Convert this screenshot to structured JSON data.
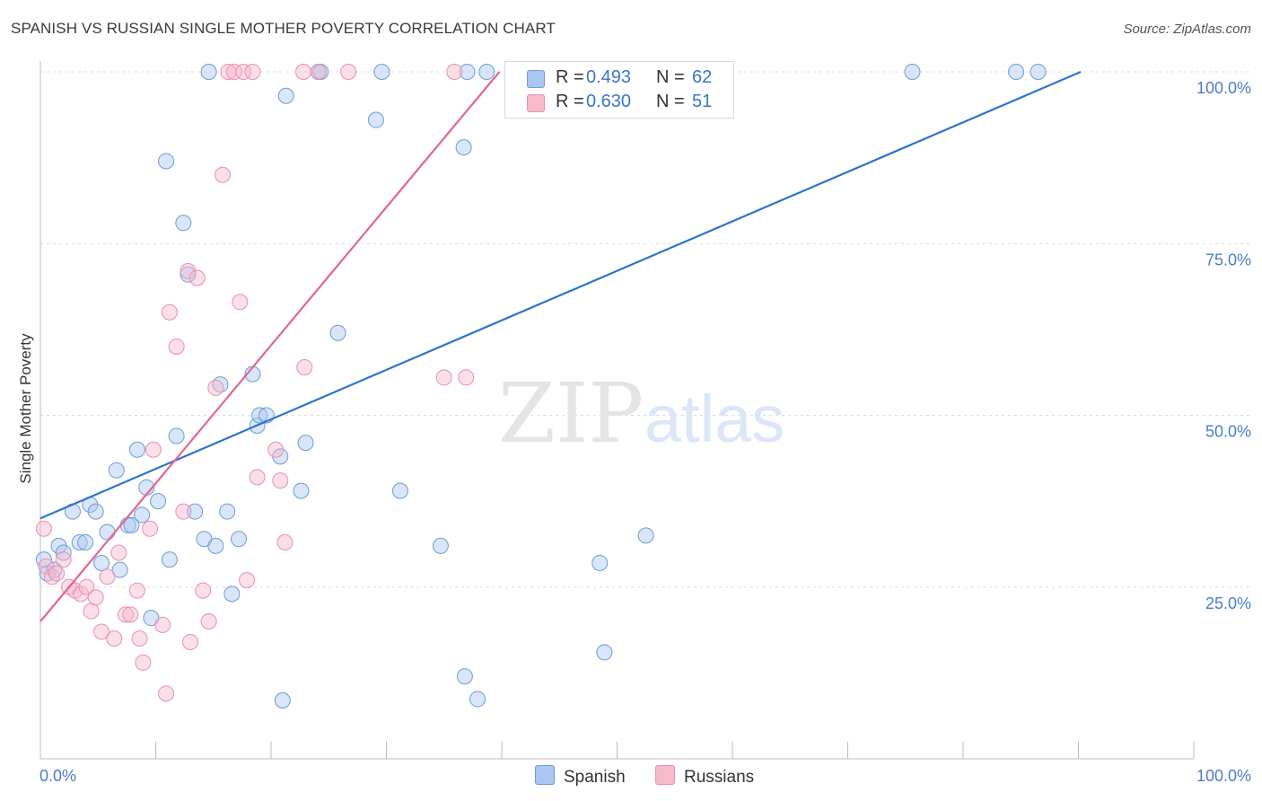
{
  "header": {
    "title": "SPANISH VS RUSSIAN SINGLE MOTHER POVERTY CORRELATION CHART",
    "source": "Source: ZipAtlas.com"
  },
  "watermark": {
    "zip": "ZIP",
    "atlas": "atlas"
  },
  "legend": {
    "rows": [
      {
        "r_label": "R =",
        "r_value": "0.493",
        "n_label": "N =",
        "n_value": "62",
        "color": "#a9c7f0"
      },
      {
        "r_label": "R =",
        "r_value": "0.630",
        "n_label": "N =",
        "n_value": "51",
        "color": "#f7b9cc"
      }
    ]
  },
  "bottom_legend": {
    "spanish": "Spanish",
    "russians": "Russians"
  },
  "colors": {
    "spanish_fill": "#a9c7f0",
    "spanish_stroke": "#6e9bd6",
    "spanish_line": "#2f73cc",
    "russian_fill": "#f7b9cc",
    "russian_stroke": "#e891ac",
    "russian_line": "#e0688f",
    "tick_text": "#4a7cc9",
    "grid": "#dcdcdc"
  },
  "chart_data": {
    "type": "scatter",
    "title": "SPANISH VS RUSSIAN SINGLE MOTHER POVERTY CORRELATION CHART",
    "xlabel": "",
    "ylabel": "Single Mother Poverty",
    "xlim": [
      0,
      100
    ],
    "ylim": [
      0,
      102
    ],
    "x_tick_labels": [
      "0.0%",
      "100.0%"
    ],
    "y_ticks": [
      25,
      50,
      75,
      100
    ],
    "y_tick_labels": [
      "25.0%",
      "50.0%",
      "75.0%",
      "100.0%"
    ],
    "grid": true,
    "legend_position": "top-center",
    "series": [
      {
        "name": "Spanish",
        "r": 0.493,
        "n": 62,
        "trend": {
          "x": [
            0,
            90.2
          ],
          "y": [
            35,
            100
          ]
        },
        "points": [
          {
            "x": 0.3,
            "y": 29
          },
          {
            "x": 0.6,
            "y": 27
          },
          {
            "x": 1.2,
            "y": 27.5
          },
          {
            "x": 1.6,
            "y": 31
          },
          {
            "x": 2.0,
            "y": 30
          },
          {
            "x": 2.8,
            "y": 36
          },
          {
            "x": 3.4,
            "y": 31.5
          },
          {
            "x": 3.9,
            "y": 31.5
          },
          {
            "x": 4.3,
            "y": 37
          },
          {
            "x": 4.8,
            "y": 36
          },
          {
            "x": 5.3,
            "y": 28.5
          },
          {
            "x": 5.8,
            "y": 33
          },
          {
            "x": 6.6,
            "y": 42
          },
          {
            "x": 6.9,
            "y": 27.5
          },
          {
            "x": 7.6,
            "y": 34
          },
          {
            "x": 7.9,
            "y": 34
          },
          {
            "x": 8.4,
            "y": 45
          },
          {
            "x": 8.8,
            "y": 35.5
          },
          {
            "x": 9.2,
            "y": 39.5
          },
          {
            "x": 9.6,
            "y": 20.5
          },
          {
            "x": 10.2,
            "y": 37.5
          },
          {
            "x": 10.9,
            "y": 87
          },
          {
            "x": 11.2,
            "y": 29
          },
          {
            "x": 11.8,
            "y": 47
          },
          {
            "x": 12.4,
            "y": 78
          },
          {
            "x": 12.8,
            "y": 70.5
          },
          {
            "x": 13.4,
            "y": 36
          },
          {
            "x": 14.2,
            "y": 32
          },
          {
            "x": 15.2,
            "y": 31
          },
          {
            "x": 15.6,
            "y": 54.5
          },
          {
            "x": 16.2,
            "y": 36
          },
          {
            "x": 16.6,
            "y": 24
          },
          {
            "x": 17.2,
            "y": 32
          },
          {
            "x": 18.4,
            "y": 56
          },
          {
            "x": 18.8,
            "y": 48.5
          },
          {
            "x": 19.0,
            "y": 50
          },
          {
            "x": 19.6,
            "y": 50
          },
          {
            "x": 20.8,
            "y": 44
          },
          {
            "x": 21.3,
            "y": 96.5
          },
          {
            "x": 22.6,
            "y": 39
          },
          {
            "x": 23.0,
            "y": 46
          },
          {
            "x": 21.0,
            "y": 8.5
          },
          {
            "x": 24.1,
            "y": 100
          },
          {
            "x": 24.3,
            "y": 100
          },
          {
            "x": 25.8,
            "y": 62
          },
          {
            "x": 29.1,
            "y": 93
          },
          {
            "x": 29.6,
            "y": 100
          },
          {
            "x": 31.2,
            "y": 39
          },
          {
            "x": 34.7,
            "y": 31
          },
          {
            "x": 36.7,
            "y": 89
          },
          {
            "x": 36.8,
            "y": 12
          },
          {
            "x": 37.9,
            "y": 8.7
          },
          {
            "x": 37.0,
            "y": 100
          },
          {
            "x": 38.7,
            "y": 100
          },
          {
            "x": 48.5,
            "y": 28.5
          },
          {
            "x": 48.9,
            "y": 15.5
          },
          {
            "x": 52.5,
            "y": 32.5
          },
          {
            "x": 52.9,
            "y": 100
          },
          {
            "x": 75.6,
            "y": 100
          },
          {
            "x": 84.6,
            "y": 100
          },
          {
            "x": 86.5,
            "y": 100
          },
          {
            "x": 14.6,
            "y": 100
          }
        ]
      },
      {
        "name": "Russians",
        "r": 0.63,
        "n": 51,
        "trend": {
          "x": [
            0,
            39.8
          ],
          "y": [
            20,
            100
          ]
        },
        "points": [
          {
            "x": 0.3,
            "y": 33.5
          },
          {
            "x": 0.5,
            "y": 28
          },
          {
            "x": 1.0,
            "y": 26.5
          },
          {
            "x": 1.4,
            "y": 27
          },
          {
            "x": 2.0,
            "y": 29
          },
          {
            "x": 2.5,
            "y": 25
          },
          {
            "x": 3.0,
            "y": 24.5
          },
          {
            "x": 3.5,
            "y": 24
          },
          {
            "x": 4.0,
            "y": 25
          },
          {
            "x": 4.4,
            "y": 21.5
          },
          {
            "x": 4.8,
            "y": 23.5
          },
          {
            "x": 5.3,
            "y": 18.5
          },
          {
            "x": 5.8,
            "y": 26.5
          },
          {
            "x": 6.4,
            "y": 17.5
          },
          {
            "x": 6.8,
            "y": 30
          },
          {
            "x": 7.4,
            "y": 21
          },
          {
            "x": 7.8,
            "y": 21
          },
          {
            "x": 8.4,
            "y": 24.5
          },
          {
            "x": 8.6,
            "y": 17.5
          },
          {
            "x": 8.9,
            "y": 14
          },
          {
            "x": 9.5,
            "y": 33.5
          },
          {
            "x": 9.8,
            "y": 45
          },
          {
            "x": 10.6,
            "y": 19.5
          },
          {
            "x": 10.9,
            "y": 9.5
          },
          {
            "x": 11.2,
            "y": 65
          },
          {
            "x": 11.8,
            "y": 60
          },
          {
            "x": 12.4,
            "y": 36
          },
          {
            "x": 12.8,
            "y": 71
          },
          {
            "x": 13.0,
            "y": 17
          },
          {
            "x": 13.6,
            "y": 70
          },
          {
            "x": 14.1,
            "y": 24.5
          },
          {
            "x": 14.6,
            "y": 20
          },
          {
            "x": 15.2,
            "y": 54
          },
          {
            "x": 15.8,
            "y": 85
          },
          {
            "x": 16.3,
            "y": 100
          },
          {
            "x": 16.8,
            "y": 100
          },
          {
            "x": 17.3,
            "y": 66.5
          },
          {
            "x": 17.6,
            "y": 100
          },
          {
            "x": 17.9,
            "y": 26
          },
          {
            "x": 18.4,
            "y": 100
          },
          {
            "x": 18.8,
            "y": 41
          },
          {
            "x": 20.4,
            "y": 45
          },
          {
            "x": 20.8,
            "y": 40.5
          },
          {
            "x": 21.2,
            "y": 31.5
          },
          {
            "x": 22.8,
            "y": 100
          },
          {
            "x": 22.9,
            "y": 57
          },
          {
            "x": 24.1,
            "y": 100
          },
          {
            "x": 26.7,
            "y": 100
          },
          {
            "x": 35.0,
            "y": 55.5
          },
          {
            "x": 35.9,
            "y": 100
          },
          {
            "x": 36.9,
            "y": 55.5
          }
        ]
      }
    ]
  }
}
